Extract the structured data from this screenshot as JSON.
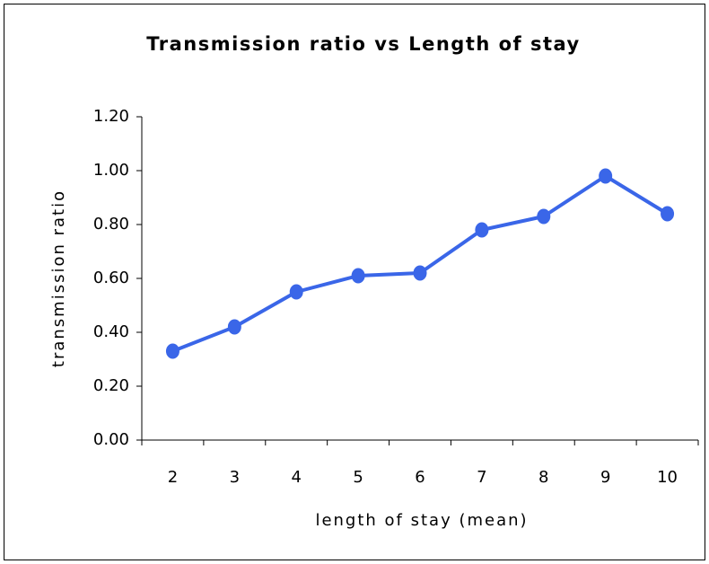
{
  "chart_data": {
    "type": "line",
    "title": "Transmission ratio vs Length of stay",
    "x_label": "length of stay (mean)",
    "y_label": "transmission ratio",
    "categories": [
      "2",
      "3",
      "4",
      "5",
      "6",
      "7",
      "8",
      "9",
      "10"
    ],
    "series": [
      {
        "name": "transmission ratio",
        "color": "#3a66e8",
        "values": [
          0.33,
          0.42,
          0.55,
          0.61,
          0.62,
          0.78,
          0.83,
          0.98,
          0.84
        ]
      }
    ],
    "ylim": [
      0,
      1.2
    ],
    "yticks": [
      {
        "value": 0,
        "label": "0.00"
      },
      {
        "value": 0.2,
        "label": "0.20"
      },
      {
        "value": 0.4,
        "label": "0.40"
      },
      {
        "value": 0.6,
        "label": "0.60"
      },
      {
        "value": 0.8,
        "label": "0.80"
      },
      {
        "value": 1,
        "label": "1.00"
      },
      {
        "value": 1.2,
        "label": "1.20"
      }
    ],
    "grid": false,
    "legend": false
  }
}
